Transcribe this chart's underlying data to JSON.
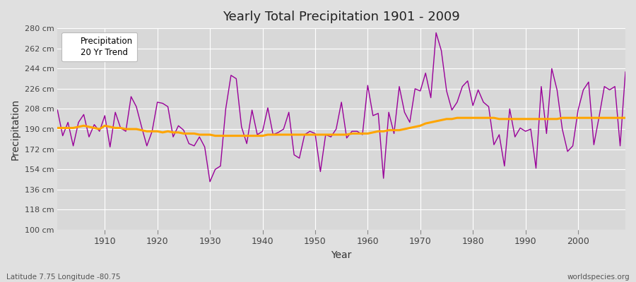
{
  "title": "Yearly Total Precipitation 1901 - 2009",
  "xlabel": "Year",
  "ylabel": "Precipitation",
  "footnote_left": "Latitude 7.75 Longitude -80.75",
  "footnote_right": "worldspecies.org",
  "legend_precip": "Precipitation",
  "legend_trend": "20 Yr Trend",
  "precip_color": "#990099",
  "trend_color": "#FFA500",
  "fig_bg_color": "#E0E0E0",
  "plot_bg_color": "#D8D8D8",
  "grid_color": "#FFFFFF",
  "ytick_labels": [
    "100 cm",
    "118 cm",
    "136 cm",
    "154 cm",
    "172 cm",
    "190 cm",
    "208 cm",
    "226 cm",
    "244 cm",
    "262 cm",
    "280 cm"
  ],
  "ytick_values": [
    100,
    118,
    136,
    154,
    172,
    190,
    208,
    226,
    244,
    262,
    280
  ],
  "ylim": [
    100,
    280
  ],
  "xlim": [
    1901,
    2009
  ],
  "xticks": [
    1910,
    1920,
    1930,
    1940,
    1950,
    1960,
    1970,
    1980,
    1990,
    2000
  ],
  "years": [
    1901,
    1902,
    1903,
    1904,
    1905,
    1906,
    1907,
    1908,
    1909,
    1910,
    1911,
    1912,
    1913,
    1914,
    1915,
    1916,
    1917,
    1918,
    1919,
    1920,
    1921,
    1922,
    1923,
    1924,
    1925,
    1926,
    1927,
    1928,
    1929,
    1930,
    1931,
    1932,
    1933,
    1934,
    1935,
    1936,
    1937,
    1938,
    1939,
    1940,
    1941,
    1942,
    1943,
    1944,
    1945,
    1946,
    1947,
    1948,
    1949,
    1950,
    1951,
    1952,
    1953,
    1954,
    1955,
    1956,
    1957,
    1958,
    1959,
    1960,
    1961,
    1962,
    1963,
    1964,
    1965,
    1966,
    1967,
    1968,
    1969,
    1970,
    1971,
    1972,
    1973,
    1974,
    1975,
    1976,
    1977,
    1978,
    1979,
    1980,
    1981,
    1982,
    1983,
    1984,
    1985,
    1986,
    1987,
    1988,
    1989,
    1990,
    1991,
    1992,
    1993,
    1994,
    1995,
    1996,
    1997,
    1998,
    1999,
    2000,
    2001,
    2002,
    2003,
    2004,
    2005,
    2006,
    2007,
    2008,
    2009
  ],
  "precip": [
    207,
    184,
    196,
    175,
    196,
    203,
    183,
    194,
    188,
    202,
    174,
    205,
    191,
    188,
    219,
    210,
    192,
    175,
    188,
    214,
    213,
    210,
    183,
    193,
    189,
    177,
    175,
    183,
    174,
    143,
    154,
    157,
    208,
    238,
    235,
    192,
    177,
    207,
    185,
    188,
    209,
    185,
    187,
    190,
    205,
    167,
    164,
    185,
    188,
    186,
    152,
    185,
    183,
    190,
    214,
    182,
    188,
    188,
    185,
    229,
    202,
    204,
    146,
    205,
    186,
    228,
    205,
    196,
    226,
    224,
    240,
    218,
    276,
    260,
    224,
    207,
    214,
    228,
    233,
    211,
    225,
    214,
    210,
    176,
    185,
    157,
    208,
    183,
    191,
    188,
    190,
    155,
    228,
    186,
    244,
    225,
    190,
    170,
    175,
    207,
    225,
    232,
    176,
    201,
    228,
    225,
    228,
    175,
    241
  ],
  "trend": [
    191,
    191,
    191,
    191,
    192,
    193,
    192,
    191,
    190,
    193,
    192,
    191,
    191,
    190,
    190,
    190,
    189,
    188,
    188,
    188,
    187,
    188,
    187,
    187,
    186,
    186,
    186,
    185,
    185,
    185,
    184,
    184,
    184,
    184,
    184,
    184,
    184,
    184,
    184,
    184,
    185,
    185,
    185,
    185,
    185,
    185,
    185,
    185,
    185,
    185,
    185,
    185,
    185,
    185,
    185,
    185,
    186,
    186,
    186,
    186,
    187,
    188,
    188,
    189,
    189,
    189,
    190,
    191,
    192,
    193,
    195,
    196,
    197,
    198,
    199,
    199,
    200,
    200,
    200,
    200,
    200,
    200,
    200,
    200,
    199,
    199,
    199,
    199,
    199,
    199,
    199,
    199,
    199,
    199,
    199,
    199,
    200,
    200,
    200,
    200,
    200,
    200,
    200,
    200,
    200,
    200,
    200,
    200,
    200
  ]
}
